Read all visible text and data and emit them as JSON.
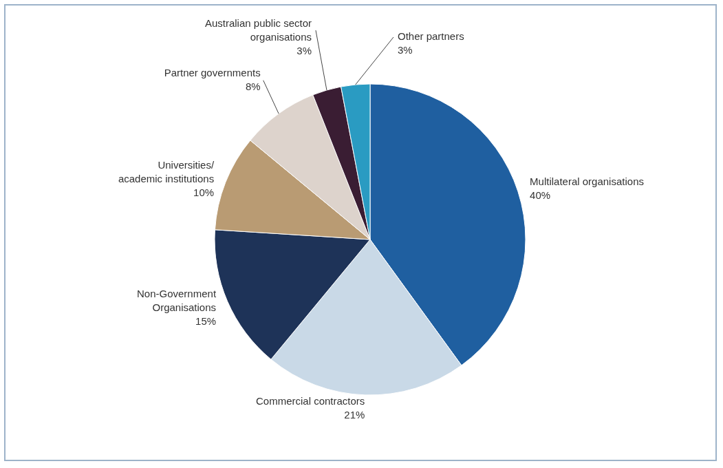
{
  "chart_data": {
    "type": "pie",
    "categories": [
      "Multilateral organisations",
      "Commercial contractors",
      "Non-Government\nOrganisations",
      "Universities/\nacademic institutions",
      "Partner governments",
      "Australian public sector\norganisations",
      "Other partners"
    ],
    "values": [
      40,
      21,
      15,
      10,
      8,
      3,
      3
    ],
    "value_labels": [
      "40%",
      "21%",
      "15%",
      "10%",
      "8%",
      "3%",
      "3%"
    ],
    "colors": [
      "#1f5fa0",
      "#c9d9e7",
      "#1e3358",
      "#b99b73",
      "#ddd3cc",
      "#3a1d33",
      "#2a9bc2"
    ]
  }
}
